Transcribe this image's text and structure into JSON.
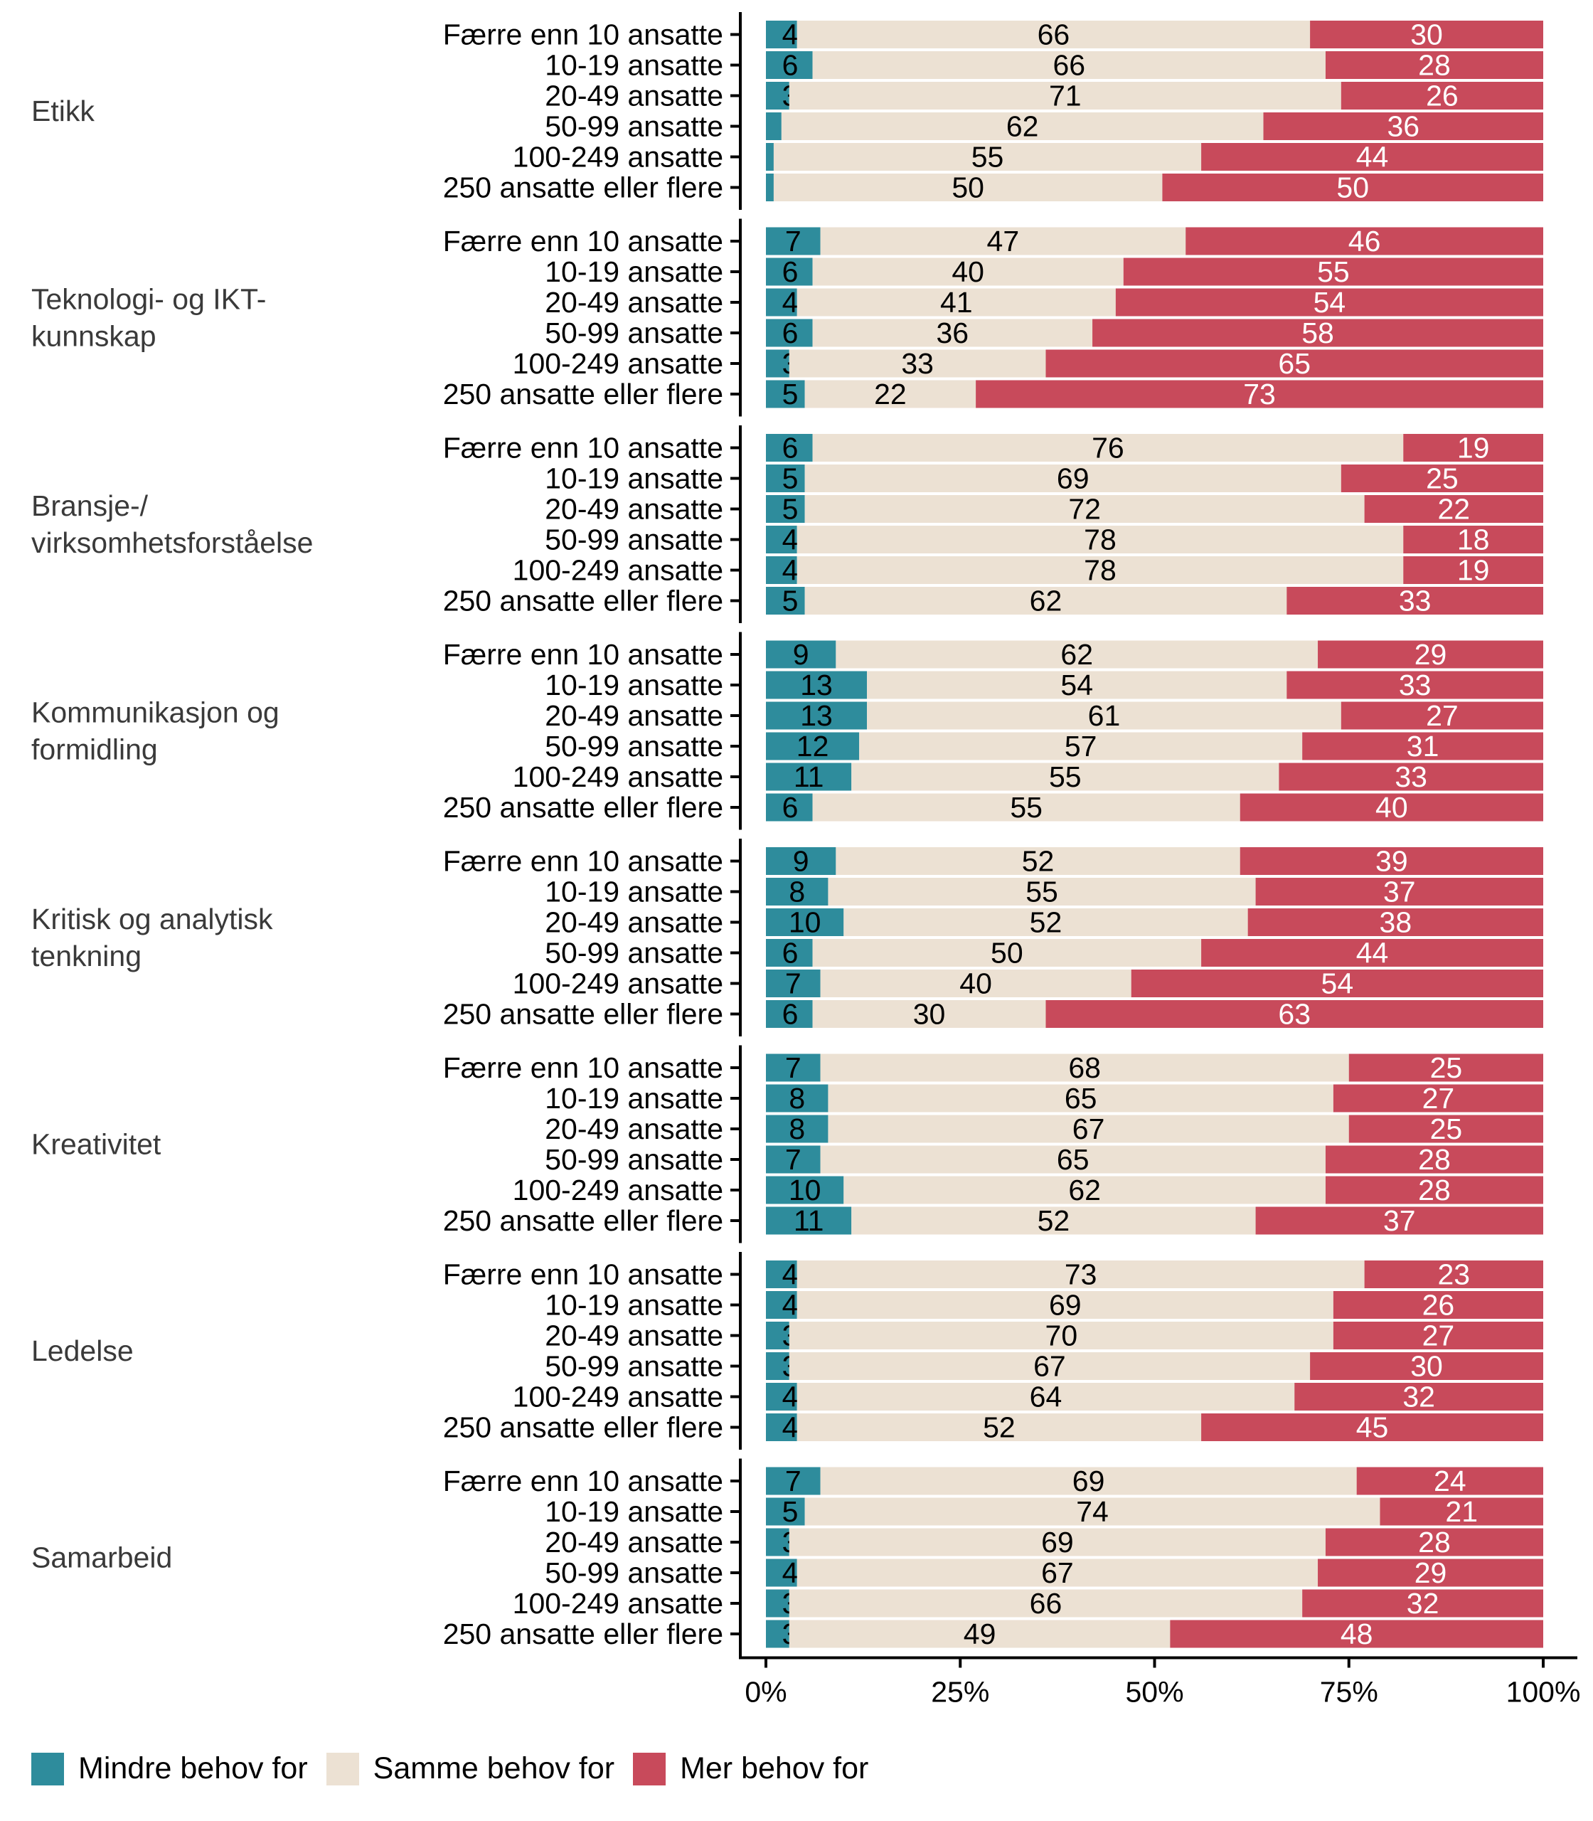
{
  "chart_data": {
    "type": "bar",
    "orientation": "horizontal",
    "stacked": true,
    "percent": true,
    "title": "",
    "xlabel": "",
    "ylabel": "",
    "xlim": [
      0,
      100
    ],
    "x_ticks": [
      "0%",
      "25%",
      "50%",
      "75%",
      "100%"
    ],
    "x_tick_values": [
      0,
      25,
      50,
      75,
      100
    ],
    "grid": false,
    "legend_position": "bottom-left",
    "categories": [
      "Færre enn 10 ansatte",
      "10-19 ansatte",
      "20-49 ansatte",
      "50-99 ansatte",
      "100-249 ansatte",
      "250 ansatte eller flere"
    ],
    "series_meta": [
      {
        "name": "Mindre behov for",
        "color": "#2E8C9C",
        "label_color": "#000000"
      },
      {
        "name": "Samme behov for",
        "color": "#ECE1D3",
        "label_color": "#000000"
      },
      {
        "name": "Mer behov for",
        "color": "#C84A5B",
        "label_color": "#FFFFFF"
      }
    ],
    "groups": [
      {
        "name": "Etikk",
        "rows": [
          {
            "values": [
              4,
              66,
              30
            ],
            "labels": [
              "4",
              "66",
              "30"
            ]
          },
          {
            "values": [
              6,
              66,
              28
            ],
            "labels": [
              "6",
              "66",
              "28"
            ]
          },
          {
            "values": [
              3,
              71,
              26
            ],
            "labels": [
              "3",
              "71",
              "26"
            ]
          },
          {
            "values": [
              2,
              62,
              36
            ],
            "labels": [
              "2",
              "62",
              "36"
            ]
          },
          {
            "values": [
              1,
              55,
              44
            ],
            "labels": [
              "1",
              "55",
              "44"
            ]
          },
          {
            "values": [
              1,
              50,
              50
            ],
            "labels": [
              "",
              "50",
              "50"
            ]
          }
        ]
      },
      {
        "name": "Teknologi- og IKT-\nkunnskap",
        "rows": [
          {
            "values": [
              7,
              47,
              46
            ],
            "labels": [
              "7",
              "47",
              "46"
            ]
          },
          {
            "values": [
              6,
              40,
              55
            ],
            "labels": [
              "6",
              "40",
              "55"
            ]
          },
          {
            "values": [
              4,
              41,
              54
            ],
            "labels": [
              "4",
              "41",
              "54"
            ]
          },
          {
            "values": [
              6,
              36,
              58
            ],
            "labels": [
              "6",
              "36",
              "58"
            ]
          },
          {
            "values": [
              3,
              33,
              65
            ],
            "labels": [
              "3",
              "33",
              "65"
            ]
          },
          {
            "values": [
              5,
              22,
              73
            ],
            "labels": [
              "5",
              "22",
              "73"
            ]
          }
        ]
      },
      {
        "name": "Bransje-/\nvirksomhetsforståelse",
        "rows": [
          {
            "values": [
              6,
              76,
              19
            ],
            "labels": [
              "6",
              "76",
              "19"
            ]
          },
          {
            "values": [
              5,
              69,
              25
            ],
            "labels": [
              "5",
              "69",
              "25"
            ]
          },
          {
            "values": [
              5,
              72,
              22
            ],
            "labels": [
              "5",
              "72",
              "22"
            ]
          },
          {
            "values": [
              4,
              78,
              18
            ],
            "labels": [
              "4",
              "78",
              "18"
            ]
          },
          {
            "values": [
              4,
              78,
              19
            ],
            "labels": [
              "4",
              "78",
              "19"
            ]
          },
          {
            "values": [
              5,
              62,
              33
            ],
            "labels": [
              "5",
              "62",
              "33"
            ]
          }
        ]
      },
      {
        "name": "Kommunikasjon og\nformidling",
        "rows": [
          {
            "values": [
              9,
              62,
              29
            ],
            "labels": [
              "9",
              "62",
              "29"
            ]
          },
          {
            "values": [
              13,
              54,
              33
            ],
            "labels": [
              "13",
              "54",
              "33"
            ]
          },
          {
            "values": [
              13,
              61,
              27
            ],
            "labels": [
              "13",
              "61",
              "27"
            ]
          },
          {
            "values": [
              12,
              57,
              31
            ],
            "labels": [
              "12",
              "57",
              "31"
            ]
          },
          {
            "values": [
              11,
              55,
              33
            ],
            "labels": [
              "11",
              "55",
              "33"
            ]
          },
          {
            "values": [
              6,
              55,
              40
            ],
            "labels": [
              "6",
              "55",
              "40"
            ]
          }
        ]
      },
      {
        "name": "Kritisk og analytisk\ntenkning",
        "rows": [
          {
            "values": [
              9,
              52,
              39
            ],
            "labels": [
              "9",
              "52",
              "39"
            ]
          },
          {
            "values": [
              8,
              55,
              37
            ],
            "labels": [
              "8",
              "55",
              "37"
            ]
          },
          {
            "values": [
              10,
              52,
              38
            ],
            "labels": [
              "10",
              "52",
              "38"
            ]
          },
          {
            "values": [
              6,
              50,
              44
            ],
            "labels": [
              "6",
              "50",
              "44"
            ]
          },
          {
            "values": [
              7,
              40,
              54
            ],
            "labels": [
              "7",
              "40",
              "54"
            ]
          },
          {
            "values": [
              6,
              30,
              63
            ],
            "labels": [
              "6",
              "30",
              "63"
            ]
          }
        ]
      },
      {
        "name": "Kreativitet",
        "rows": [
          {
            "values": [
              7,
              68,
              25
            ],
            "labels": [
              "7",
              "68",
              "25"
            ]
          },
          {
            "values": [
              8,
              65,
              27
            ],
            "labels": [
              "8",
              "65",
              "27"
            ]
          },
          {
            "values": [
              8,
              67,
              25
            ],
            "labels": [
              "8",
              "67",
              "25"
            ]
          },
          {
            "values": [
              7,
              65,
              28
            ],
            "labels": [
              "7",
              "65",
              "28"
            ]
          },
          {
            "values": [
              10,
              62,
              28
            ],
            "labels": [
              "10",
              "62",
              "28"
            ]
          },
          {
            "values": [
              11,
              52,
              37
            ],
            "labels": [
              "11",
              "52",
              "37"
            ]
          }
        ]
      },
      {
        "name": "Ledelse",
        "rows": [
          {
            "values": [
              4,
              73,
              23
            ],
            "labels": [
              "4",
              "73",
              "23"
            ]
          },
          {
            "values": [
              4,
              69,
              26
            ],
            "labels": [
              "4",
              "69",
              "26"
            ]
          },
          {
            "values": [
              3,
              70,
              27
            ],
            "labels": [
              "3",
              "70",
              "27"
            ]
          },
          {
            "values": [
              3,
              67,
              30
            ],
            "labels": [
              "3",
              "67",
              "30"
            ]
          },
          {
            "values": [
              4,
              64,
              32
            ],
            "labels": [
              "4",
              "64",
              "32"
            ]
          },
          {
            "values": [
              4,
              52,
              45
            ],
            "labels": [
              "4",
              "52",
              "45"
            ]
          }
        ]
      },
      {
        "name": "Samarbeid",
        "rows": [
          {
            "values": [
              7,
              69,
              24
            ],
            "labels": [
              "7",
              "69",
              "24"
            ]
          },
          {
            "values": [
              5,
              74,
              21
            ],
            "labels": [
              "5",
              "74",
              "21"
            ]
          },
          {
            "values": [
              3,
              69,
              28
            ],
            "labels": [
              "3",
              "69",
              "28"
            ]
          },
          {
            "values": [
              4,
              67,
              29
            ],
            "labels": [
              "4",
              "67",
              "29"
            ]
          },
          {
            "values": [
              3,
              66,
              32
            ],
            "labels": [
              "3",
              "66",
              "32"
            ]
          },
          {
            "values": [
              3,
              49,
              48
            ],
            "labels": [
              "3",
              "49",
              "48"
            ]
          }
        ]
      }
    ]
  },
  "legend": {
    "items": [
      {
        "label": "Mindre behov for",
        "color": "#2E8C9C"
      },
      {
        "label": "Samme behov for",
        "color": "#ECE1D3"
      },
      {
        "label": "Mer behov for",
        "color": "#C84A5B"
      }
    ]
  }
}
